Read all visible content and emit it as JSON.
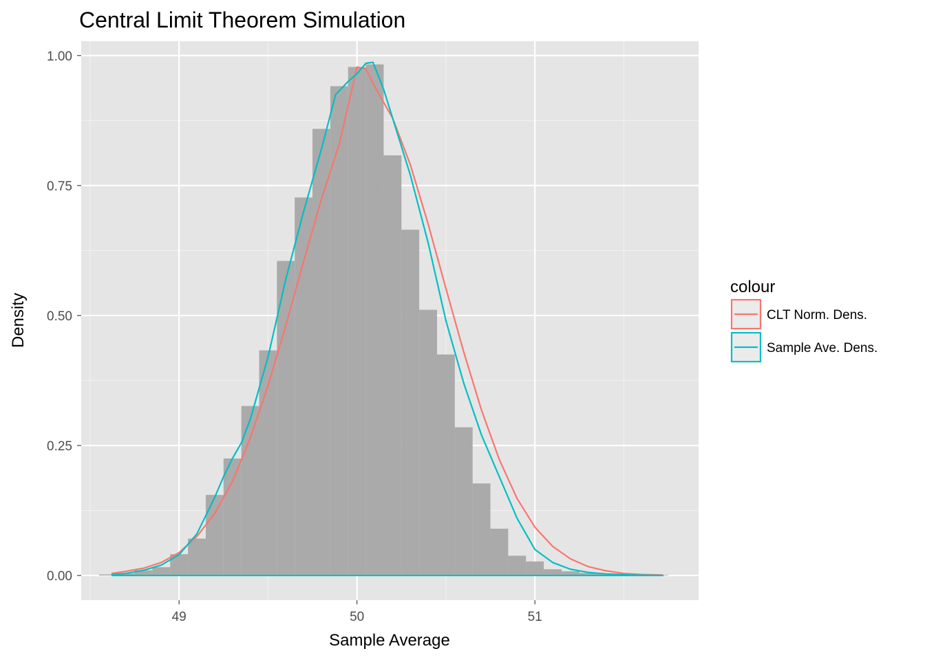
{
  "colors": {
    "panel_bg": "#e5e5e5",
    "grid_major": "#ffffff",
    "grid_minor": "#f2f2f2",
    "histogram_fill": "#a6a6a6",
    "clt_norm_line": "#f8766d",
    "sample_density_line": "#00bfc4",
    "legend_key_bg": "#ebebeb"
  },
  "chart_data": {
    "type": "histogram",
    "title": "Central Limit Theorem Simulation",
    "xlabel": "Sample Average",
    "ylabel": "Density",
    "xlim": [
      48.45,
      51.92
    ],
    "ylim": [
      -0.0475,
      1.0275
    ],
    "x_ticks": [
      49,
      50,
      51
    ],
    "x_tick_labels": [
      "49",
      "50",
      "51"
    ],
    "y_ticks": [
      0,
      0.25,
      0.5,
      0.75,
      1
    ],
    "y_tick_labels": [
      "0.00",
      "0.25",
      "0.50",
      "0.75",
      "1.00"
    ],
    "grid": true,
    "legend": {
      "title": "colour",
      "position": "right",
      "entries": [
        "CLT Norm. Dens.",
        "Sample Ave. Dens."
      ]
    },
    "histogram": {
      "bin_width": 0.1,
      "bins": [
        {
          "x0": 48.55,
          "x1": 48.65,
          "density": 0.002
        },
        {
          "x0": 48.65,
          "x1": 48.75,
          "density": 0.004
        },
        {
          "x0": 48.75,
          "x1": 48.85,
          "density": 0.01
        },
        {
          "x0": 48.85,
          "x1": 48.95,
          "density": 0.016
        },
        {
          "x0": 48.95,
          "x1": 49.05,
          "density": 0.041
        },
        {
          "x0": 49.05,
          "x1": 49.15,
          "density": 0.071
        },
        {
          "x0": 49.15,
          "x1": 49.25,
          "density": 0.155
        },
        {
          "x0": 49.25,
          "x1": 49.35,
          "density": 0.225
        },
        {
          "x0": 49.35,
          "x1": 49.45,
          "density": 0.326
        },
        {
          "x0": 49.45,
          "x1": 49.55,
          "density": 0.433
        },
        {
          "x0": 49.55,
          "x1": 49.65,
          "density": 0.605
        },
        {
          "x0": 49.65,
          "x1": 49.75,
          "density": 0.727
        },
        {
          "x0": 49.75,
          "x1": 49.85,
          "density": 0.859
        },
        {
          "x0": 49.85,
          "x1": 49.95,
          "density": 0.941
        },
        {
          "x0": 49.95,
          "x1": 50.05,
          "density": 0.978
        },
        {
          "x0": 50.05,
          "x1": 50.15,
          "density": 0.983
        },
        {
          "x0": 50.15,
          "x1": 50.25,
          "density": 0.808
        },
        {
          "x0": 50.25,
          "x1": 50.35,
          "density": 0.665
        },
        {
          "x0": 50.35,
          "x1": 50.45,
          "density": 0.511
        },
        {
          "x0": 50.45,
          "x1": 50.55,
          "density": 0.425
        },
        {
          "x0": 50.55,
          "x1": 50.65,
          "density": 0.285
        },
        {
          "x0": 50.65,
          "x1": 50.75,
          "density": 0.177
        },
        {
          "x0": 50.75,
          "x1": 50.85,
          "density": 0.09
        },
        {
          "x0": 50.85,
          "x1": 50.95,
          "density": 0.038
        },
        {
          "x0": 50.95,
          "x1": 51.05,
          "density": 0.027
        },
        {
          "x0": 51.05,
          "x1": 51.15,
          "density": 0.012
        },
        {
          "x0": 51.15,
          "x1": 51.25,
          "density": 0.008
        },
        {
          "x0": 51.25,
          "x1": 51.35,
          "density": 0.005
        },
        {
          "x0": 51.35,
          "x1": 51.45,
          "density": 0.003
        },
        {
          "x0": 51.45,
          "x1": 51.55,
          "density": 0.001
        },
        {
          "x0": 51.55,
          "x1": 51.65,
          "density": 0.001
        },
        {
          "x0": 51.65,
          "x1": 51.75,
          "density": 0.001
        }
      ]
    },
    "series": [
      {
        "name": "CLT Norm. Dens.",
        "color": "#f8766d",
        "points": [
          [
            48.62,
            0.004
          ],
          [
            48.7,
            0.008
          ],
          [
            48.8,
            0.014
          ],
          [
            48.9,
            0.025
          ],
          [
            49.0,
            0.044
          ],
          [
            49.1,
            0.075
          ],
          [
            49.2,
            0.119
          ],
          [
            49.3,
            0.181
          ],
          [
            49.4,
            0.264
          ],
          [
            49.5,
            0.365
          ],
          [
            49.6,
            0.481
          ],
          [
            49.7,
            0.604
          ],
          [
            49.8,
            0.724
          ],
          [
            49.9,
            0.829
          ],
          [
            49.95,
            0.903
          ],
          [
            50.0,
            0.978
          ],
          [
            50.05,
            0.974
          ],
          [
            50.1,
            0.94
          ],
          [
            50.2,
            0.88
          ],
          [
            50.3,
            0.79
          ],
          [
            50.4,
            0.676
          ],
          [
            50.5,
            0.552
          ],
          [
            50.6,
            0.43
          ],
          [
            50.7,
            0.318
          ],
          [
            50.8,
            0.223
          ],
          [
            50.9,
            0.148
          ],
          [
            51.0,
            0.093
          ],
          [
            51.1,
            0.056
          ],
          [
            51.2,
            0.032
          ],
          [
            51.3,
            0.017
          ],
          [
            51.4,
            0.009
          ],
          [
            51.5,
            0.004
          ],
          [
            51.6,
            0.002
          ],
          [
            51.72,
            0.001
          ]
        ]
      },
      {
        "name": "Sample Ave. Dens.",
        "color": "#00bfc4",
        "points": [
          [
            48.62,
            0.002
          ],
          [
            48.7,
            0.004
          ],
          [
            48.8,
            0.01
          ],
          [
            48.9,
            0.02
          ],
          [
            49.0,
            0.04
          ],
          [
            49.1,
            0.08
          ],
          [
            49.2,
            0.15
          ],
          [
            49.25,
            0.19
          ],
          [
            49.3,
            0.225
          ],
          [
            49.35,
            0.255
          ],
          [
            49.4,
            0.3
          ],
          [
            49.5,
            0.42
          ],
          [
            49.6,
            0.57
          ],
          [
            49.7,
            0.7
          ],
          [
            49.8,
            0.82
          ],
          [
            49.88,
            0.925
          ],
          [
            49.95,
            0.95
          ],
          [
            50.0,
            0.965
          ],
          [
            50.05,
            0.985
          ],
          [
            50.09,
            0.987
          ],
          [
            50.15,
            0.935
          ],
          [
            50.2,
            0.88
          ],
          [
            50.3,
            0.77
          ],
          [
            50.4,
            0.64
          ],
          [
            50.5,
            0.49
          ],
          [
            50.6,
            0.37
          ],
          [
            50.7,
            0.27
          ],
          [
            50.8,
            0.19
          ],
          [
            50.9,
            0.11
          ],
          [
            51.0,
            0.05
          ],
          [
            51.1,
            0.025
          ],
          [
            51.2,
            0.012
          ],
          [
            51.3,
            0.006
          ],
          [
            51.4,
            0.003
          ],
          [
            51.55,
            0.001
          ],
          [
            51.72,
            0.0
          ],
          [
            48.62,
            0.0
          ]
        ]
      }
    ]
  }
}
